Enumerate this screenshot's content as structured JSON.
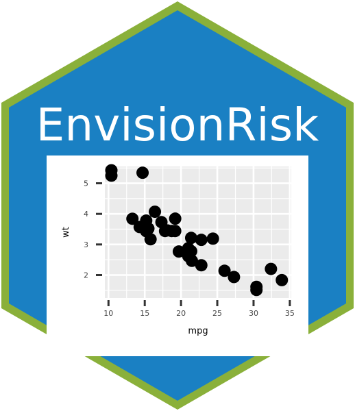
{
  "badge": {
    "title": "EnvisionRisk",
    "colors": {
      "border": "#8ab03a",
      "fill": "#1a80c3",
      "panel": "#ffffff"
    }
  },
  "chart_data": {
    "type": "scatter",
    "xlabel": "mpg",
    "ylabel": "wt",
    "xlim": [
      9.5,
      35.2
    ],
    "ylim": [
      1.25,
      5.55
    ],
    "xticks": [
      10,
      15,
      20,
      25,
      30,
      35
    ],
    "yticks": [
      2,
      3,
      4,
      5
    ],
    "grid": true,
    "legend": "none",
    "point_color": "#000000",
    "panel_background": "#ebebeb",
    "points": [
      [
        21.0,
        2.62
      ],
      [
        21.0,
        2.875
      ],
      [
        22.8,
        2.32
      ],
      [
        21.4,
        3.215
      ],
      [
        18.7,
        3.44
      ],
      [
        18.1,
        3.46
      ],
      [
        14.3,
        3.57
      ],
      [
        24.4,
        3.19
      ],
      [
        22.8,
        3.15
      ],
      [
        19.2,
        3.44
      ],
      [
        17.8,
        3.44
      ],
      [
        16.4,
        4.07
      ],
      [
        17.3,
        3.73
      ],
      [
        15.2,
        3.78
      ],
      [
        10.4,
        5.25
      ],
      [
        10.4,
        5.424
      ],
      [
        14.7,
        5.345
      ],
      [
        32.4,
        2.2
      ],
      [
        30.4,
        1.615
      ],
      [
        33.9,
        1.835
      ],
      [
        21.5,
        2.465
      ],
      [
        15.5,
        3.52
      ],
      [
        15.2,
        3.435
      ],
      [
        13.3,
        3.84
      ],
      [
        19.2,
        3.845
      ],
      [
        27.3,
        1.935
      ],
      [
        26.0,
        2.14
      ],
      [
        30.4,
        1.513
      ],
      [
        15.8,
        3.17
      ],
      [
        19.7,
        2.77
      ],
      [
        15.0,
        3.57
      ],
      [
        21.4,
        2.78
      ]
    ]
  }
}
